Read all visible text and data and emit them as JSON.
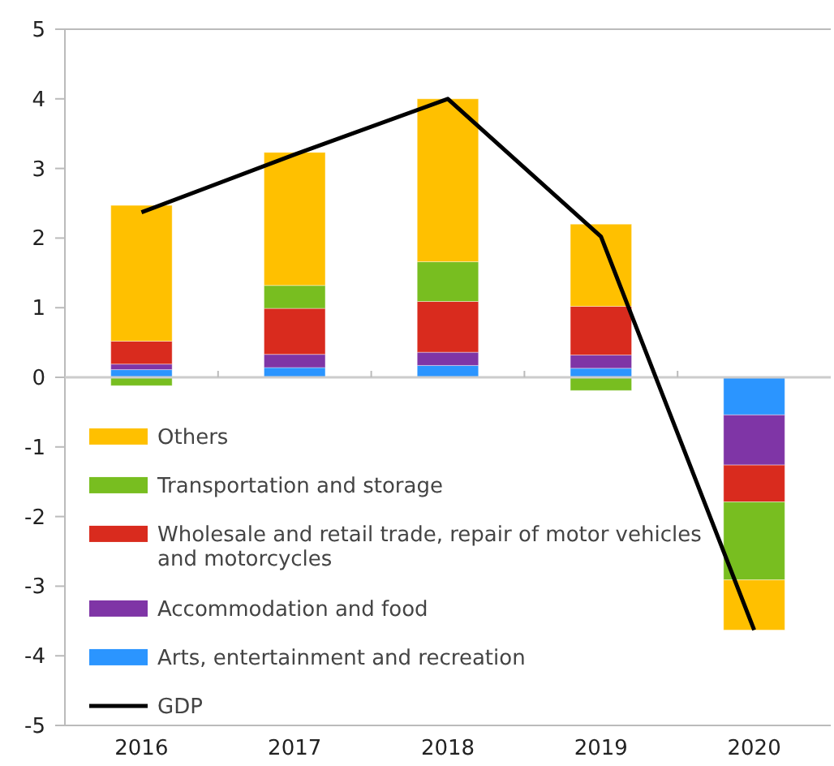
{
  "chart_data": {
    "type": "bar",
    "stacked": true,
    "categories": [
      "2016",
      "2017",
      "2018",
      "2019",
      "2020"
    ],
    "ylim": [
      -5,
      5
    ],
    "yticks": [
      -5,
      -4,
      -3,
      -2,
      -1,
      0,
      1,
      2,
      3,
      4,
      5
    ],
    "legend": "bottom left",
    "series": [
      {
        "name": "Arts, entertainment and recreation",
        "color": "#2b95ff",
        "values": [
          0.11,
          0.14,
          0.17,
          0.13,
          -0.54
        ]
      },
      {
        "name": "Accommodation and food",
        "color": "#7f35a6",
        "values": [
          0.08,
          0.19,
          0.19,
          0.19,
          -0.72
        ]
      },
      {
        "name": "Wholesale and retail trade, repair of motor vehicles and motorcycles",
        "color": "#d92b1e",
        "values": [
          0.33,
          0.66,
          0.73,
          0.7,
          -0.53
        ]
      },
      {
        "name": "Transportation and storage",
        "color": "#78be20",
        "values": [
          -0.12,
          0.33,
          0.57,
          -0.19,
          -1.12
        ]
      },
      {
        "name": "Others",
        "color": "#ffc000",
        "values": [
          1.95,
          1.91,
          2.34,
          1.18,
          -0.72
        ]
      },
      {
        "name": "GDP",
        "type": "line",
        "color": "#000000",
        "values": [
          2.37,
          3.2,
          4.0,
          2.02,
          -3.63
        ]
      }
    ]
  }
}
